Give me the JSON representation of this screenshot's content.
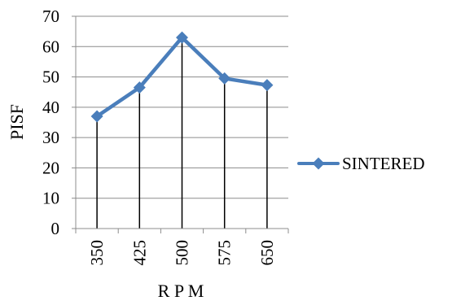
{
  "chart_data": {
    "type": "line",
    "xlabel": "R P M",
    "ylabel": "PISF",
    "ylim": [
      0,
      70
    ],
    "yticks": [
      0,
      10,
      20,
      30,
      40,
      50,
      60,
      70
    ],
    "categories": [
      "350",
      "425",
      "500",
      "575",
      "650"
    ],
    "series": [
      {
        "name": "SINTERED",
        "values": [
          37,
          46.5,
          63,
          49.5,
          47.3
        ],
        "color": "#4a7ebb",
        "marker": "diamond"
      }
    ],
    "grid": "horizontal",
    "drop_lines": true,
    "legend_position": "right"
  }
}
